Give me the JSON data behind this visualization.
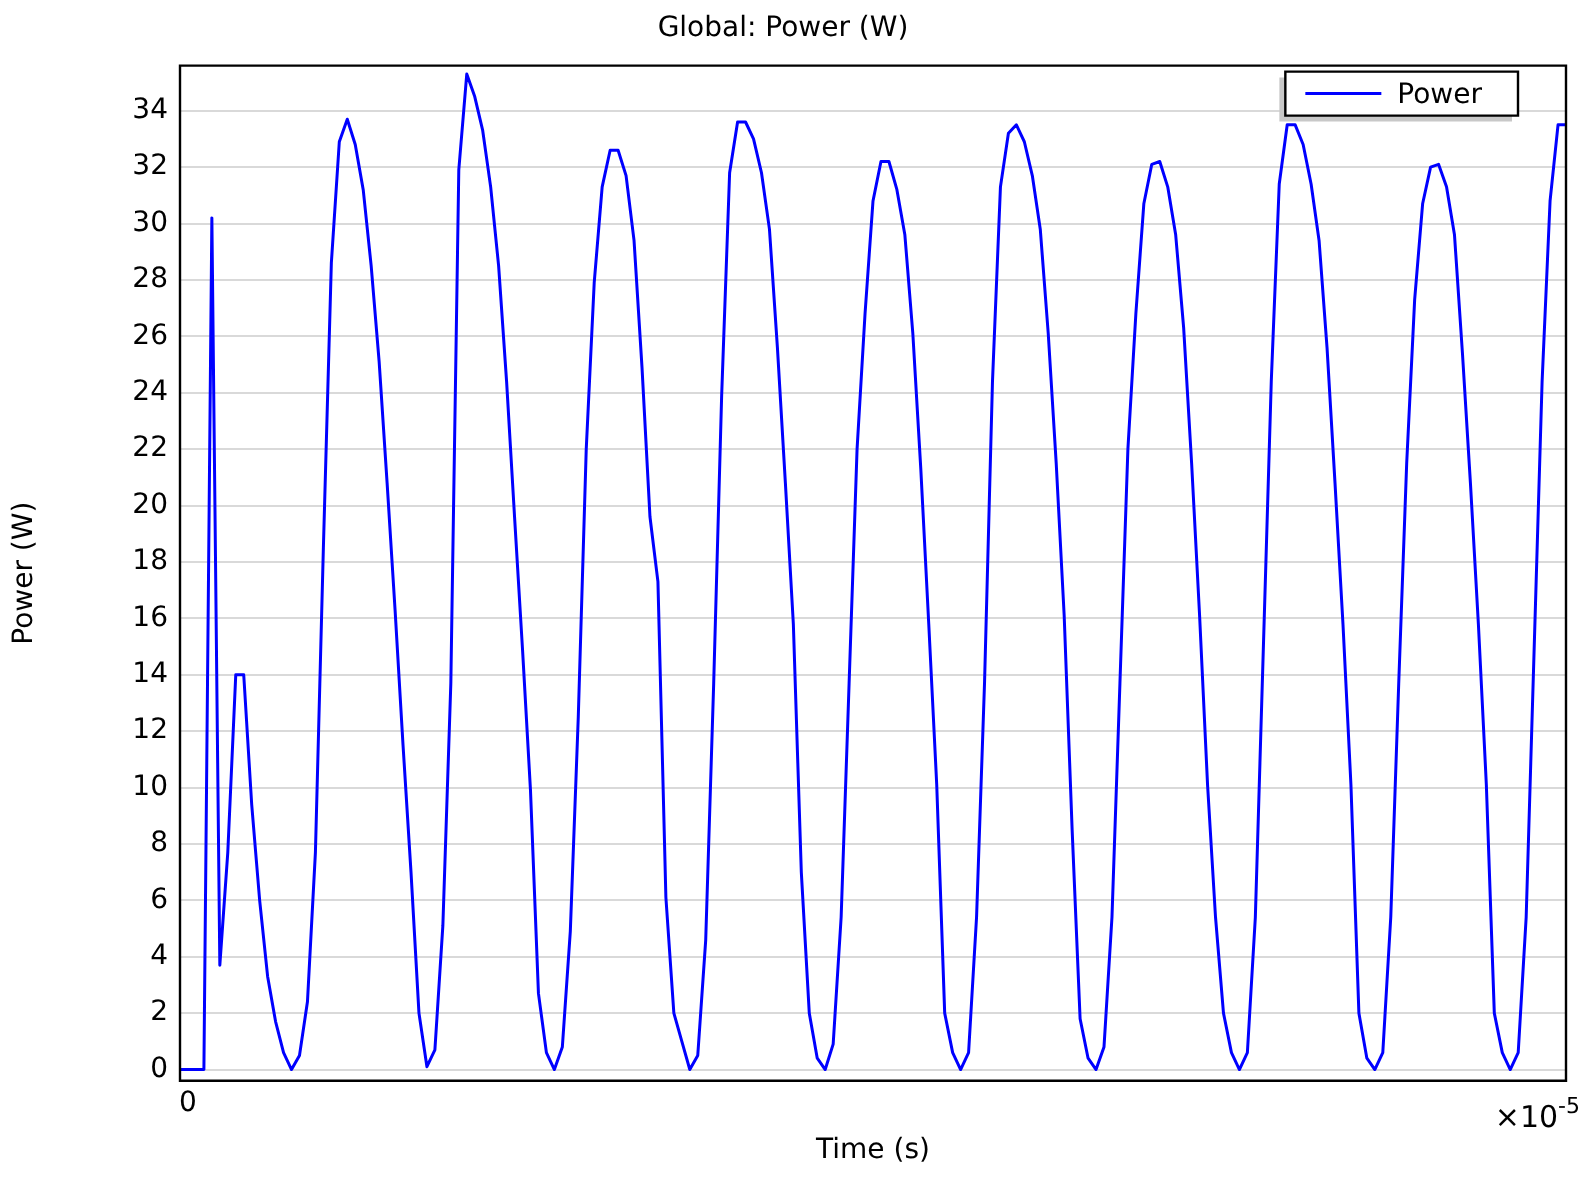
{
  "chart_data": {
    "type": "line",
    "title": "Global: Power (W)",
    "xlabel": "Time (s)",
    "ylabel": "Power (W)",
    "annotations": [
      "×10$^{-5}$"
    ],
    "categories": [
      null,
      "0",
      null,
      null,
      null,
      null,
      null,
      null,
      null,
      null,
      null,
      null,
      null,
      null,
      null,
      null,
      null,
      null,
      null,
      null,
      null,
      null,
      null,
      null,
      null,
      null,
      null,
      null,
      null,
      null,
      null,
      null,
      null,
      null,
      null,
      null,
      null,
      null,
      null,
      null,
      null,
      null,
      null,
      null,
      null,
      null,
      null,
      null,
      null,
      null,
      null,
      null,
      null,
      null,
      null,
      null,
      null,
      null,
      null,
      null,
      null,
      null,
      null,
      null,
      null,
      null,
      null,
      null,
      null,
      null,
      null,
      null,
      null,
      null,
      null,
      null,
      null,
      null,
      null,
      null,
      null,
      null,
      null,
      null,
      null,
      null,
      null,
      null,
      null,
      null,
      null,
      null,
      null,
      null,
      null,
      null,
      null,
      null,
      null,
      null,
      null,
      null,
      null,
      null,
      null,
      null,
      null,
      null,
      null,
      null,
      null,
      null,
      null,
      null,
      null,
      null,
      null,
      null,
      null,
      null,
      null,
      null,
      null,
      null,
      null,
      null,
      null,
      null,
      null,
      null,
      null,
      null,
      null,
      null,
      null,
      null,
      null,
      null,
      null,
      null,
      null,
      null,
      null,
      null,
      null,
      null,
      null,
      null,
      null,
      null,
      null,
      null,
      null,
      null,
      null,
      null,
      null,
      null,
      null,
      null,
      null,
      null,
      null,
      null,
      null,
      null,
      null,
      null,
      null,
      null,
      null,
      null,
      null,
      null,
      null
    ],
    "ylim": [
      -0.4,
      35.6
    ],
    "yticks": [
      0,
      2,
      4,
      6,
      8,
      10,
      12,
      14,
      16,
      18,
      20,
      22,
      24,
      26,
      28,
      30,
      32,
      34
    ],
    "grid": "y",
    "legend": "top right",
    "marker": "none",
    "line_style": "solid",
    "series": [
      {
        "name": "Power",
        "color": "#0000ff",
        "values": [
          0,
          0,
          0,
          0,
          30.2,
          3.7,
          7.7,
          14.0,
          14.0,
          9.4,
          6.0,
          3.3,
          1.7,
          0.6,
          0,
          0.5,
          2.4,
          7.7,
          18.5,
          28.6,
          32.9,
          33.7,
          32.8,
          31.2,
          28.5,
          25.1,
          20.8,
          16.3,
          11.5,
          7.0,
          2.0,
          0.1,
          0.7,
          5.1,
          13.7,
          31.9,
          35.3,
          34.5,
          33.3,
          31.3,
          28.5,
          24.4,
          19.6,
          14.9,
          9.9,
          2.7,
          0.6,
          0,
          0.8,
          4.9,
          12.5,
          22.0,
          27.9,
          31.3,
          32.6,
          32.6,
          31.7,
          29.4,
          24.9,
          19.6,
          17.3,
          6.1,
          2.0,
          1.0,
          0,
          0.5,
          4.6,
          13.7,
          23.9,
          31.8,
          33.6,
          33.6,
          33.0,
          31.8,
          29.8,
          25.6,
          20.8,
          15.8,
          7.0,
          2.0,
          0.4,
          0,
          0.9,
          5.4,
          13.7,
          22.0,
          26.8,
          30.8,
          32.2,
          32.2,
          31.2,
          29.6,
          26.1,
          21.3,
          15.8,
          10.1,
          2.0,
          0.6,
          0,
          0.6,
          5.4,
          13.7,
          24.4,
          31.3,
          33.2,
          33.5,
          32.9,
          31.7,
          29.8,
          26.1,
          21.5,
          16.1,
          8.5,
          1.8,
          0.4,
          0,
          0.8,
          5.4,
          13.7,
          22.0,
          26.8,
          30.7,
          32.1,
          32.2,
          31.3,
          29.6,
          26.3,
          21.5,
          16.1,
          10.1,
          5.4,
          2.0,
          0.6,
          0,
          0.6,
          5.4,
          14.9,
          24.4,
          31.4,
          33.5,
          33.5,
          32.8,
          31.4,
          29.4,
          25.6,
          20.8,
          15.8,
          10.1,
          2.0,
          0.4,
          0,
          0.6,
          5.4,
          13.7,
          21.5,
          27.3,
          30.7,
          32.0,
          32.1,
          31.3,
          29.6,
          25.4,
          20.8,
          15.8,
          10.1,
          2.0,
          0.6,
          0,
          0.6,
          5.4,
          14.9,
          24.4,
          30.8,
          33.5,
          33.5
        ]
      }
    ]
  }
}
